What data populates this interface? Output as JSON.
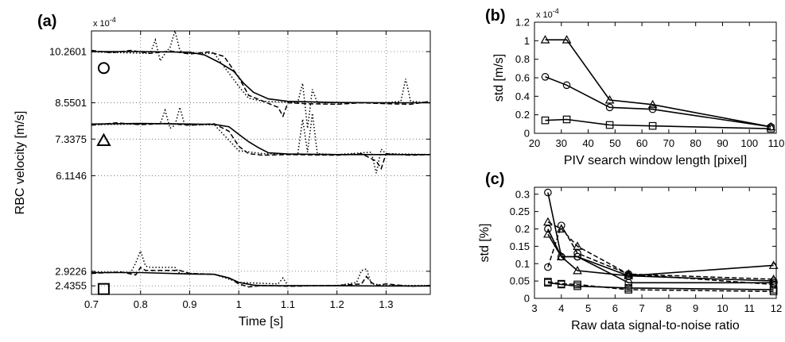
{
  "chart_data": [
    {
      "panel_label": "(a)",
      "type": "line",
      "xlabel": "Time [s]",
      "ylabel": "RBC velocity [m/s]",
      "y_multiplier": "x 10^-4",
      "xlim": [
        0.7,
        1.39
      ],
      "ylim": [
        2.15,
        10.95
      ],
      "x_ticks": [
        0.7,
        0.8,
        0.9,
        1.0,
        1.1,
        1.2,
        1.3
      ],
      "y_ticks": [
        2.4355,
        2.9226,
        6.1146,
        7.3375,
        8.5501,
        10.2601
      ],
      "y_tick_labels": [
        "2.4355",
        "2.9226",
        "6.1146",
        "7.3375",
        "8.5501",
        "10.2601"
      ],
      "grid": "dotted",
      "groups": [
        {
          "marker": "circle",
          "series": [
            {
              "style": "solid",
              "x": [
                0.7,
                0.8,
                0.9,
                0.93,
                0.96,
                0.99,
                1.01,
                1.03,
                1.06,
                1.1,
                1.2,
                1.3,
                1.39
              ],
              "y": [
                10.26,
                10.26,
                10.24,
                10.15,
                9.9,
                9.6,
                9.2,
                8.9,
                8.68,
                8.6,
                8.56,
                8.55,
                8.55
              ]
            },
            {
              "style": "dashed",
              "x": [
                0.7,
                0.74,
                0.78,
                0.82,
                0.86,
                0.9,
                0.94,
                0.97,
                1.0,
                1.02,
                1.05,
                1.08,
                1.09,
                1.1,
                1.14,
                1.2,
                1.25,
                1.3,
                1.35,
                1.39
              ],
              "y": [
                10.3,
                10.22,
                10.3,
                10.2,
                10.28,
                10.18,
                10.25,
                10.1,
                9.4,
                8.8,
                8.6,
                8.4,
                8.1,
                8.55,
                8.52,
                8.5,
                8.55,
                8.52,
                8.5,
                8.6
              ]
            },
            {
              "style": "dotted",
              "x": [
                0.7,
                0.82,
                0.83,
                0.84,
                0.85,
                0.86,
                0.87,
                0.88,
                0.89,
                0.95,
                1.0,
                1.02,
                1.05,
                1.12,
                1.13,
                1.14,
                1.15,
                1.16,
                1.2,
                1.3,
                1.33,
                1.34,
                1.35,
                1.39
              ],
              "y": [
                10.25,
                10.2,
                10.65,
                9.95,
                10.2,
                10.4,
                10.95,
                10.3,
                10.2,
                10.2,
                9.1,
                8.7,
                8.6,
                8.55,
                9.2,
                7.7,
                9.0,
                8.55,
                8.55,
                8.55,
                8.6,
                9.35,
                8.6,
                8.55
              ]
            }
          ]
        },
        {
          "marker": "triangle",
          "series": [
            {
              "style": "solid",
              "x": [
                0.7,
                0.8,
                0.9,
                0.95,
                0.98,
                1.0,
                1.02,
                1.04,
                1.06,
                1.1,
                1.2,
                1.3,
                1.39
              ],
              "y": [
                7.84,
                7.86,
                7.84,
                7.83,
                7.75,
                7.5,
                7.25,
                7.05,
                6.88,
                6.84,
                6.82,
                6.82,
                6.82
              ]
            },
            {
              "style": "dashed",
              "x": [
                0.7,
                0.75,
                0.8,
                0.85,
                0.9,
                0.95,
                0.98,
                1.0,
                1.02,
                1.05,
                1.1,
                1.2,
                1.25,
                1.28,
                1.29,
                1.3,
                1.35,
                1.39
              ],
              "y": [
                7.8,
                7.88,
                7.82,
                7.86,
                7.8,
                7.85,
                7.6,
                7.1,
                6.85,
                6.8,
                6.82,
                6.8,
                6.85,
                6.6,
                6.35,
                6.85,
                6.8,
                6.82
              ]
            },
            {
              "style": "dotted",
              "x": [
                0.7,
                0.84,
                0.85,
                0.86,
                0.87,
                0.88,
                0.89,
                0.95,
                1.0,
                1.05,
                1.12,
                1.13,
                1.14,
                1.15,
                1.16,
                1.2,
                1.27,
                1.28,
                1.29,
                1.3,
                1.39
              ],
              "y": [
                7.82,
                7.85,
                8.3,
                7.7,
                7.8,
                8.4,
                7.8,
                7.82,
                6.95,
                6.85,
                6.82,
                8.0,
                6.9,
                8.2,
                6.85,
                6.82,
                6.9,
                6.2,
                7.0,
                6.85,
                6.82
              ]
            }
          ]
        },
        {
          "marker": "square",
          "series": [
            {
              "style": "solid",
              "x": [
                0.7,
                0.8,
                0.9,
                0.95,
                0.98,
                1.0,
                1.03,
                1.05,
                1.1,
                1.2,
                1.3,
                1.39
              ],
              "y": [
                2.88,
                2.88,
                2.83,
                2.82,
                2.7,
                2.55,
                2.46,
                2.44,
                2.44,
                2.44,
                2.43,
                2.43
              ]
            },
            {
              "style": "dashed",
              "x": [
                0.7,
                0.76,
                0.79,
                0.8,
                0.81,
                0.88,
                0.9,
                0.95,
                0.98,
                1.0,
                1.02,
                1.05,
                1.1,
                1.2,
                1.25,
                1.26,
                1.27,
                1.28,
                1.3,
                1.35,
                1.39
              ],
              "y": [
                2.85,
                2.9,
                2.8,
                3.05,
                2.95,
                2.95,
                2.85,
                2.82,
                2.7,
                2.5,
                2.4,
                2.45,
                2.42,
                2.45,
                2.5,
                2.75,
                2.55,
                2.45,
                2.5,
                2.42,
                2.45
              ]
            },
            {
              "style": "dotted",
              "x": [
                0.7,
                0.78,
                0.79,
                0.8,
                0.81,
                0.82,
                0.87,
                0.88,
                0.9,
                0.95,
                1.0,
                1.08,
                1.09,
                1.1,
                1.2,
                1.24,
                1.25,
                1.26,
                1.27,
                1.3,
                1.39
              ],
              "y": [
                2.9,
                2.88,
                3.2,
                3.6,
                3.1,
                3.05,
                3.05,
                2.85,
                2.85,
                2.82,
                2.55,
                2.5,
                2.7,
                2.45,
                2.44,
                2.55,
                2.95,
                3.0,
                2.5,
                2.45,
                2.45
              ]
            }
          ]
        }
      ]
    },
    {
      "panel_label": "(b)",
      "type": "line",
      "xlabel": "PIV search window length [pixel]",
      "ylabel": "std [m/s]",
      "y_multiplier": "x 10^-4",
      "xlim": [
        20,
        110
      ],
      "ylim": [
        0,
        1.2
      ],
      "x_ticks": [
        20,
        30,
        40,
        50,
        60,
        70,
        80,
        90,
        100,
        110
      ],
      "y_ticks": [
        0,
        0.2,
        0.4,
        0.6,
        0.8,
        1.0,
        1.2
      ],
      "y_tick_labels": [
        "0",
        "0.2",
        "0.4",
        "0.6",
        "0.8",
        "1",
        "1.2"
      ],
      "series": [
        {
          "marker": "triangle",
          "x": [
            24,
            32,
            48,
            64,
            108
          ],
          "y": [
            1.01,
            1.01,
            0.36,
            0.31,
            0.07
          ]
        },
        {
          "marker": "circle",
          "x": [
            24,
            32,
            48,
            64,
            108
          ],
          "y": [
            0.61,
            0.52,
            0.28,
            0.26,
            0.07
          ]
        },
        {
          "marker": "square",
          "x": [
            24,
            32,
            48,
            64,
            108
          ],
          "y": [
            0.14,
            0.15,
            0.09,
            0.08,
            0.05
          ]
        }
      ]
    },
    {
      "panel_label": "(c)",
      "type": "line",
      "xlabel": "Raw data signal-to-noise ratio",
      "ylabel": "std [%]",
      "xlim": [
        3,
        12
      ],
      "ylim": [
        0,
        0.32
      ],
      "x_ticks": [
        3,
        4,
        5,
        6,
        7,
        8,
        9,
        10,
        11,
        12
      ],
      "y_ticks": [
        0,
        0.05,
        0.1,
        0.15,
        0.2,
        0.25,
        0.3
      ],
      "y_tick_labels": [
        "0",
        "0.05",
        "0.1",
        "0.15",
        "0.2",
        "0.25",
        "0.3"
      ],
      "series": [
        {
          "marker": "circle",
          "style": "solid",
          "x": [
            3.5,
            4.0,
            4.6,
            6.5,
            11.9
          ],
          "y": [
            0.305,
            0.12,
            0.12,
            0.065,
            0.05
          ]
        },
        {
          "marker": "circle",
          "style": "dashed",
          "x": [
            3.5,
            4.0,
            4.6,
            6.5,
            11.9
          ],
          "y": [
            0.09,
            0.21,
            0.13,
            0.07,
            0.04
          ]
        },
        {
          "marker": "triangle",
          "style": "solid",
          "x": [
            3.5,
            4.0,
            4.6,
            6.5,
            11.9
          ],
          "y": [
            0.185,
            0.12,
            0.08,
            0.065,
            0.095
          ]
        },
        {
          "marker": "triangle",
          "style": "dashed",
          "x": [
            3.5,
            4.0,
            4.6,
            6.5,
            11.9
          ],
          "y": [
            0.22,
            0.2,
            0.15,
            0.07,
            0.055
          ]
        },
        {
          "marker": "circle",
          "style": "solid",
          "x": [
            3.5,
            4.0,
            4.6,
            6.5,
            11.9
          ],
          "y": [
            0.2,
            0.12,
            0.12,
            0.045,
            0.045
          ]
        },
        {
          "marker": "square",
          "style": "solid",
          "x": [
            3.5,
            4.0,
            4.6,
            6.5,
            11.9
          ],
          "y": [
            0.045,
            0.04,
            0.035,
            0.03,
            0.025
          ]
        },
        {
          "marker": "square",
          "style": "dashed",
          "x": [
            3.5,
            4.0,
            4.6,
            6.5,
            11.9
          ],
          "y": [
            0.048,
            0.042,
            0.04,
            0.025,
            0.02
          ]
        }
      ]
    }
  ]
}
